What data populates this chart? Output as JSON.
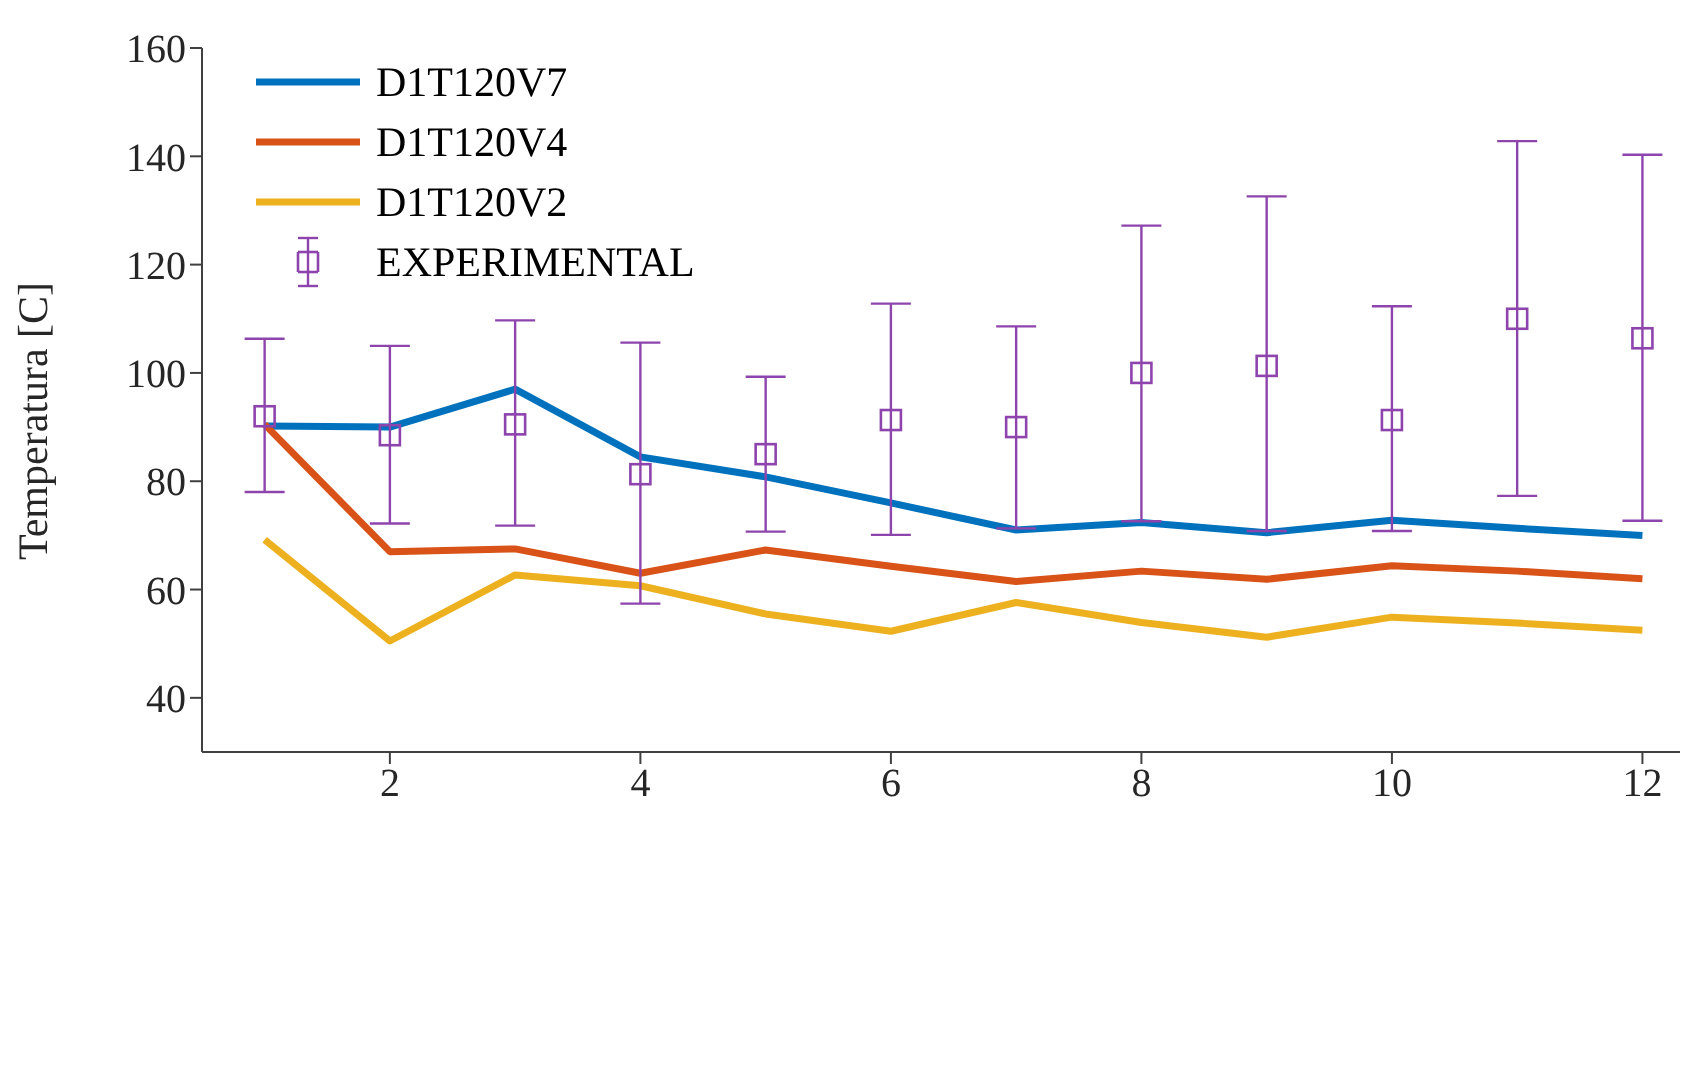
{
  "chart_data": {
    "type": "line",
    "ylabel": "Temperatura [C]",
    "x": [
      1,
      2,
      3,
      4,
      5,
      6,
      7,
      8,
      9,
      10,
      11,
      12
    ],
    "xlim": [
      0.5,
      12.3
    ],
    "xticks": [
      2,
      4,
      6,
      8,
      10,
      12
    ],
    "ylim": [
      30,
      160
    ],
    "yticks": [
      40,
      60,
      80,
      100,
      120,
      140,
      160
    ],
    "grid": false,
    "legend": "top left",
    "line_style": "solid",
    "series": [
      {
        "name": "D1T120V7",
        "marker": "none",
        "color": "#0072bd",
        "values": [
          90.2,
          90,
          97,
          84.5,
          80.8,
          76,
          71,
          72.4,
          70.5,
          72.8,
          71.3,
          70
        ]
      },
      {
        "name": "D1T120V4",
        "marker": "none",
        "color": "#d95319",
        "values": [
          90.5,
          67,
          67.5,
          63,
          67.3,
          64.3,
          61.5,
          63.4,
          61.9,
          64.4,
          63.4,
          62
        ]
      },
      {
        "name": "D1T120V2",
        "marker": "none",
        "color": "#edb120",
        "values": [
          69.2,
          50.5,
          62.7,
          60.7,
          55.5,
          52.3,
          57.6,
          53.9,
          51.2,
          54.9,
          53.8,
          52.5
        ]
      },
      {
        "name": "EXPERIMENTAL",
        "type": "scatter",
        "marker": "square",
        "color": "#8e44ad",
        "values": [
          92,
          88.5,
          90.5,
          81.3,
          85,
          91.3,
          90,
          100,
          101.3,
          91.3,
          110,
          106.4
        ],
        "errors": [
          [
            78,
            106.3
          ],
          [
            72.2,
            105
          ],
          [
            71.8,
            109.7
          ],
          [
            57.4,
            105.6
          ],
          [
            70.7,
            99.3
          ],
          [
            70.1,
            112.8
          ],
          [
            71.3,
            108.6
          ],
          [
            72.6,
            127.2
          ],
          [
            70.8,
            132.6
          ],
          [
            70.8,
            112.3
          ],
          [
            77.3,
            142.8
          ],
          [
            72.7,
            140.3
          ]
        ]
      }
    ]
  }
}
